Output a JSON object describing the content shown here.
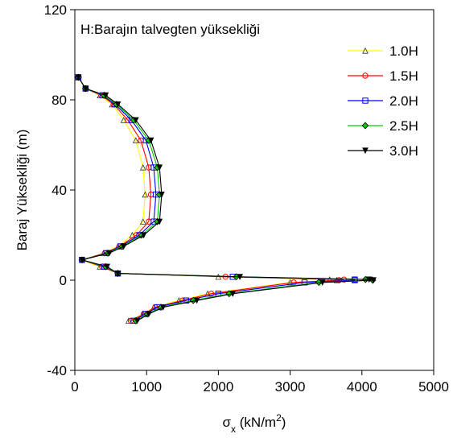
{
  "chart_data": {
    "type": "line",
    "xlabel": {
      "symbol": "σ",
      "subscript": "x",
      "rest": " (kN/m",
      "sup": "2",
      "close": ")"
    },
    "ylabel": "Baraj Yüksekliği (m)",
    "annotation": "H:Barajın talvegten yüksekliği",
    "xlim": [
      0,
      5000
    ],
    "ylim": [
      -40,
      120
    ],
    "xticks": [
      "0",
      "1000",
      "2000",
      "3000",
      "4000",
      "5000"
    ],
    "yticks": [
      "-40",
      "0",
      "40",
      "80",
      "120"
    ],
    "legend_position": "top-right",
    "series": [
      {
        "name": "1.0H",
        "color": "#ffff00",
        "marker": "triangle-up",
        "points": [
          [
            50,
            90
          ],
          [
            150,
            85
          ],
          [
            350,
            82
          ],
          [
            520,
            78
          ],
          [
            680,
            71
          ],
          [
            850,
            62
          ],
          [
            950,
            50
          ],
          [
            980,
            38
          ],
          [
            950,
            26
          ],
          [
            800,
            20
          ],
          [
            600,
            15
          ],
          [
            400,
            12
          ],
          [
            100,
            9
          ],
          [
            350,
            6
          ],
          [
            600,
            3
          ],
          [
            2000,
            1.5
          ],
          [
            3550,
            0.3
          ],
          [
            3650,
            0
          ],
          [
            3000,
            -1
          ],
          [
            1850,
            -6
          ],
          [
            1450,
            -9
          ],
          [
            1100,
            -12
          ],
          [
            950,
            -15
          ],
          [
            750,
            -18
          ]
        ]
      },
      {
        "name": "1.5H",
        "color": "#ff0000",
        "marker": "circle",
        "points": [
          [
            50,
            90
          ],
          [
            150,
            85
          ],
          [
            370,
            82
          ],
          [
            540,
            78
          ],
          [
            740,
            71
          ],
          [
            920,
            62
          ],
          [
            1030,
            50
          ],
          [
            1060,
            38
          ],
          [
            1030,
            26
          ],
          [
            860,
            20
          ],
          [
            620,
            15
          ],
          [
            420,
            12
          ],
          [
            100,
            9
          ],
          [
            380,
            6
          ],
          [
            600,
            3
          ],
          [
            2100,
            1.5
          ],
          [
            3750,
            0.3
          ],
          [
            3680,
            0
          ],
          [
            3050,
            -1
          ],
          [
            1900,
            -6
          ],
          [
            1500,
            -9
          ],
          [
            1120,
            -12
          ],
          [
            960,
            -15
          ],
          [
            780,
            -18
          ]
        ]
      },
      {
        "name": "2.0H",
        "color": "#0000ff",
        "marker": "square",
        "points": [
          [
            50,
            90
          ],
          [
            150,
            85
          ],
          [
            390,
            82
          ],
          [
            560,
            78
          ],
          [
            790,
            71
          ],
          [
            990,
            62
          ],
          [
            1100,
            50
          ],
          [
            1130,
            38
          ],
          [
            1100,
            26
          ],
          [
            900,
            20
          ],
          [
            640,
            15
          ],
          [
            440,
            12
          ],
          [
            100,
            9
          ],
          [
            410,
            6
          ],
          [
            600,
            3
          ],
          [
            2200,
            1.5
          ],
          [
            3900,
            0.3
          ],
          [
            3900,
            0
          ],
          [
            3200,
            -1
          ],
          [
            2000,
            -6
          ],
          [
            1550,
            -9
          ],
          [
            1150,
            -12
          ],
          [
            980,
            -15
          ],
          [
            820,
            -18
          ]
        ]
      },
      {
        "name": "2.5H",
        "color": "#00cc00",
        "marker": "diamond",
        "points": [
          [
            50,
            90
          ],
          [
            150,
            85
          ],
          [
            410,
            82
          ],
          [
            580,
            78
          ],
          [
            820,
            71
          ],
          [
            1030,
            62
          ],
          [
            1150,
            50
          ],
          [
            1180,
            38
          ],
          [
            1150,
            26
          ],
          [
            930,
            20
          ],
          [
            660,
            15
          ],
          [
            460,
            12
          ],
          [
            100,
            9
          ],
          [
            430,
            6
          ],
          [
            600,
            3
          ],
          [
            2250,
            1.5
          ],
          [
            4050,
            0.3
          ],
          [
            4150,
            0
          ],
          [
            3400,
            -1
          ],
          [
            2150,
            -6
          ],
          [
            1650,
            -9
          ],
          [
            1200,
            -12
          ],
          [
            1010,
            -15
          ],
          [
            850,
            -18
          ]
        ]
      },
      {
        "name": "3.0H",
        "color": "#000000",
        "marker": "triangle-down",
        "points": [
          [
            50,
            90
          ],
          [
            150,
            85
          ],
          [
            430,
            82
          ],
          [
            600,
            78
          ],
          [
            850,
            71
          ],
          [
            1060,
            62
          ],
          [
            1180,
            50
          ],
          [
            1210,
            38
          ],
          [
            1180,
            26
          ],
          [
            960,
            20
          ],
          [
            680,
            15
          ],
          [
            480,
            12
          ],
          [
            100,
            9
          ],
          [
            450,
            6
          ],
          [
            600,
            3
          ],
          [
            2300,
            1.5
          ],
          [
            4100,
            0.3
          ],
          [
            4160,
            0
          ],
          [
            3450,
            -1
          ],
          [
            2200,
            -6
          ],
          [
            1700,
            -9
          ],
          [
            1230,
            -12
          ],
          [
            1030,
            -15
          ],
          [
            870,
            -18
          ]
        ]
      }
    ]
  }
}
